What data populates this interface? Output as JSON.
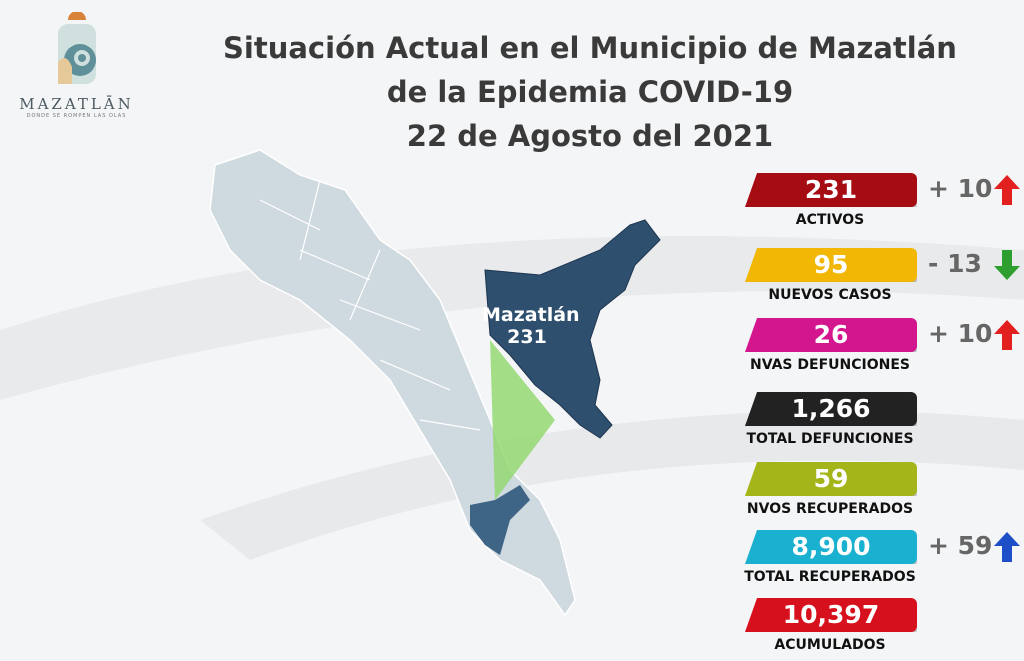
{
  "logo": {
    "name": "MAZATLĀN",
    "tagline": "DONDE SE ROMPEN LAS OLAS"
  },
  "title": {
    "line1": "Situación Actual en el Municipio de Mazatlán",
    "line2": "de la Epidemia COVID-19",
    "line3": "22 de Agosto del 2021"
  },
  "map": {
    "municipality": "Mazatlán",
    "value": "231",
    "highlight_color": "#2e4f6e"
  },
  "stats": [
    {
      "value": "231",
      "label": "ACTIVOS",
      "color": "#a50d12",
      "delta": "+ 10",
      "trend": "up"
    },
    {
      "value": "95",
      "label": "NUEVOS CASOS",
      "color": "#f2b705",
      "delta": "- 13",
      "trend": "down"
    },
    {
      "value": "26",
      "label": "NVAS DEFUNCIONES",
      "color": "#d4168e",
      "delta": "+ 10",
      "trend": "up"
    },
    {
      "value": "1,266",
      "label": "TOTAL DEFUNCIONES",
      "color": "#222222"
    },
    {
      "value": "59",
      "label": "NVOS RECUPERADOS",
      "color": "#a4b51a"
    },
    {
      "value": "8,900",
      "label": "TOTAL RECUPERADOS",
      "color": "#1ab0cf",
      "delta": "+ 59",
      "trend": "up-blue"
    },
    {
      "value": "10,397",
      "label": "ACUMULADOS",
      "color": "#d6101c"
    }
  ]
}
